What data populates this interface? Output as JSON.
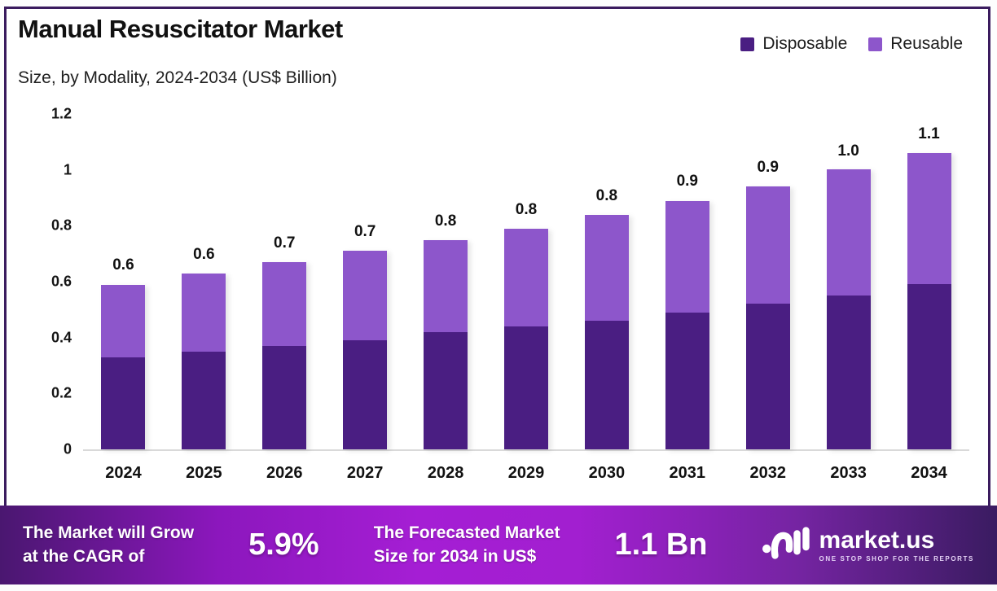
{
  "header": {
    "title": "Manual Resuscitator Market",
    "subtitle": "Size, by Modality, 2024-2034 (US$ Billion)"
  },
  "legend": {
    "items": [
      {
        "label": "Disposable",
        "color": "#4a1e82"
      },
      {
        "label": "Reusable",
        "color": "#8d56cb"
      }
    ]
  },
  "chart_data": {
    "type": "bar",
    "stacked": true,
    "title": "Manual Resuscitator Market",
    "subtitle": "Size, by Modality, 2024-2034 (US$ Billion)",
    "unit": "US$ Billion",
    "categories": [
      "2024",
      "2025",
      "2026",
      "2027",
      "2028",
      "2029",
      "2030",
      "2031",
      "2032",
      "2033",
      "2034"
    ],
    "series": [
      {
        "name": "Disposable",
        "color": "#4a1e82",
        "values": [
          0.33,
          0.35,
          0.37,
          0.39,
          0.42,
          0.44,
          0.46,
          0.49,
          0.52,
          0.55,
          0.59
        ]
      },
      {
        "name": "Reusable",
        "color": "#8d56cb",
        "values": [
          0.26,
          0.28,
          0.3,
          0.32,
          0.33,
          0.35,
          0.38,
          0.4,
          0.42,
          0.45,
          0.47
        ]
      }
    ],
    "total_labels": [
      "0.6",
      "0.6",
      "0.7",
      "0.7",
      "0.8",
      "0.8",
      "0.8",
      "0.9",
      "0.9",
      "1.0",
      "1.1"
    ],
    "y_axis": {
      "min": 0,
      "max": 1.2,
      "ticks": [
        "1.2",
        "1",
        "0.8",
        "0.6",
        "0.4",
        "0.2",
        "0"
      ],
      "tick_values": [
        1.2,
        1,
        0.8,
        0.6,
        0.4,
        0.2,
        0
      ]
    },
    "grid": false,
    "legend_position": "top-right"
  },
  "banner": {
    "cagr_line1": "The Market will Grow",
    "cagr_line2": "at the CAGR of",
    "cagr_value": "5.9%",
    "forecast_line1": "The Forecasted Market",
    "forecast_line2": "Size for 2034 in US$",
    "forecast_value": "1.1 Bn",
    "logo": {
      "name": "market.us",
      "tagline": "ONE STOP SHOP FOR THE REPORTS"
    }
  }
}
